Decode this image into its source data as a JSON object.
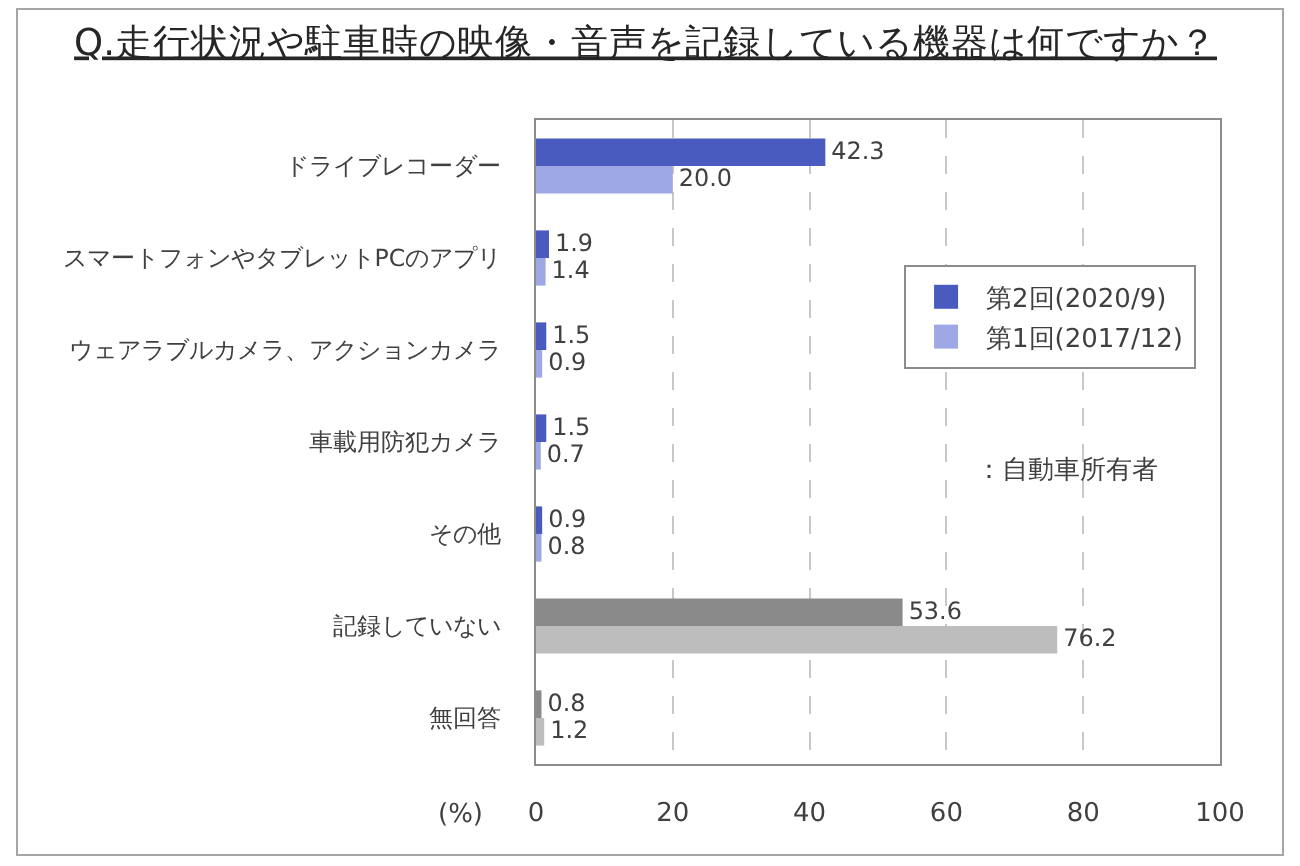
{
  "chart_data": {
    "type": "bar",
    "orientation": "horizontal",
    "title": "Q.走行状況や駐車時の映像・音声を記録している機器は何ですか？",
    "xlabel": "(%)",
    "annotations": [
      "：自動車所有者"
    ],
    "categories": [
      "ドライブレコーダー",
      "スマートフォンやタブレットPCのアプリ",
      "ウェアラブルカメラ、アクションカメラ",
      "車載用防犯カメラ",
      "その他",
      "記録していない",
      "無回答"
    ],
    "series": [
      {
        "name": "第2回(2020/9)",
        "colors": [
          "#4a5bc0",
          "#4a5bc0",
          "#4a5bc0",
          "#4a5bc0",
          "#4a5bc0",
          "#8a8a8a",
          "#8a8a8a"
        ],
        "values": [
          42.3,
          1.9,
          1.5,
          1.5,
          0.9,
          53.6,
          0.8
        ],
        "value_labels": [
          "42.3",
          "1.9",
          "1.5",
          "1.5",
          "0.9",
          "53.6",
          "0.8"
        ]
      },
      {
        "name": "第1回(2017/12)",
        "colors": [
          "#9ea8e6",
          "#9ea8e6",
          "#9ea8e6",
          "#9ea8e6",
          "#9ea8e6",
          "#bdbdbd",
          "#bdbdbd"
        ],
        "values": [
          20.0,
          1.4,
          0.9,
          0.7,
          0.8,
          76.2,
          1.2
        ],
        "value_labels": [
          "20.0",
          "1.4",
          "0.9",
          "0.7",
          "0.8",
          "76.2",
          "1.2"
        ]
      }
    ],
    "xlim": [
      0,
      100
    ],
    "xticks": [
      0,
      20,
      40,
      60,
      80,
      100
    ],
    "grid": "x",
    "legend": "right"
  }
}
